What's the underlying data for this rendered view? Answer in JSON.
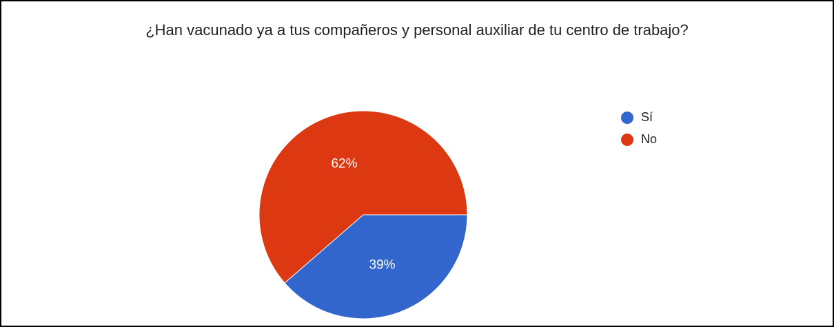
{
  "chart_data": {
    "type": "pie",
    "title": "¿Han vacunado ya a tus compañeros y personal auxiliar de tu centro de trabajo?",
    "categories": [
      "Sí",
      "No"
    ],
    "values": [
      39,
      62
    ],
    "value_labels": [
      "39%",
      "62%"
    ],
    "colors": [
      "#3366cc",
      "#dc3912"
    ],
    "legend": "right"
  }
}
